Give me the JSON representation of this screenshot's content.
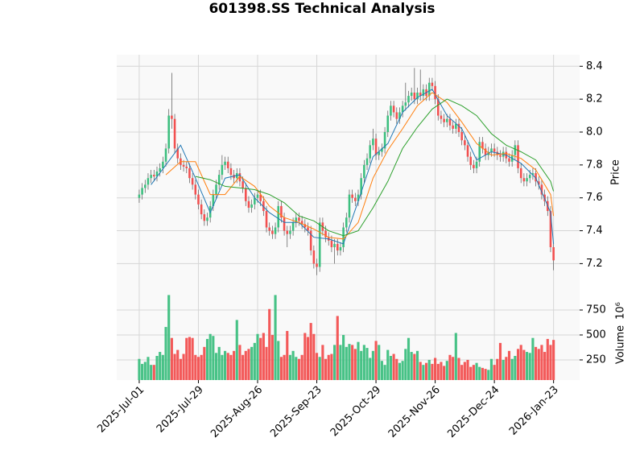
{
  "chart_data": {
    "type": "candlestick",
    "title": "601398.SS Technical Analysis",
    "ylabel": "Price",
    "volume_label": "Volume",
    "volume_offset": "10⁶",
    "up_color": "#3dbf7f",
    "down_color": "#f25050",
    "grid": true,
    "xlim": [
      -7.6,
      148.8
    ],
    "xticks": [
      {
        "value": 0,
        "label": "2025-Jul-01"
      },
      {
        "value": 20,
        "label": "2025-Jul-29"
      },
      {
        "value": 40,
        "label": "2025-Aug-26"
      },
      {
        "value": 60,
        "label": "2025-Sep-23"
      },
      {
        "value": 80,
        "label": "2025-Oct-29"
      },
      {
        "value": 100,
        "label": "2025-Nov-26"
      },
      {
        "value": 120,
        "label": "2025-Dec-24"
      },
      {
        "value": 140,
        "label": "2026-Jan-23"
      }
    ],
    "ylim": [
      7.06,
      8.47
    ],
    "yticks": [
      7.2,
      7.4,
      7.6,
      7.8,
      {
        "value": 8,
        "label": "8.0"
      },
      8.2,
      8.4
    ],
    "volume_ylim": [
      48,
      984
    ],
    "volume_yticks": [
      250,
      500,
      750
    ],
    "open": [
      7.6,
      7.62,
      7.66,
      7.68,
      7.72,
      7.74,
      7.73,
      7.76,
      7.78,
      7.82,
      7.9,
      8.1,
      8.08,
      7.9,
      7.84,
      7.8,
      7.79,
      7.78,
      7.72,
      7.68,
      7.62,
      7.56,
      7.5,
      7.46,
      7.48,
      7.55,
      7.62,
      7.68,
      7.74,
      7.8,
      7.82,
      7.78,
      7.74,
      7.72,
      7.75,
      7.7,
      7.66,
      7.58,
      7.54,
      7.56,
      7.6,
      7.62,
      7.58,
      7.52,
      7.42,
      7.4,
      7.38,
      7.42,
      7.55,
      7.48,
      7.4,
      7.38,
      7.4,
      7.45,
      7.48,
      7.46,
      7.44,
      7.42,
      7.4,
      7.28,
      7.2,
      7.18,
      7.45,
      7.4,
      7.36,
      7.34,
      7.3,
      7.32,
      7.28,
      7.3,
      7.42,
      7.48,
      7.62,
      7.6,
      7.58,
      7.62,
      7.72,
      7.8,
      7.84,
      7.92,
      7.96,
      7.86,
      7.88,
      7.9,
      8.0,
      8.1,
      8.16,
      8.12,
      8.08,
      8.12,
      8.16,
      8.18,
      8.22,
      8.24,
      8.2,
      8.24,
      8.22,
      8.26,
      8.22,
      8.3,
      8.28,
      8.2,
      8.1,
      8.08,
      8.06,
      8.08,
      8.04,
      8.02,
      8.05,
      8.0,
      7.95,
      7.92,
      7.85,
      7.8,
      7.78,
      7.82,
      7.94,
      7.9,
      7.86,
      7.88,
      7.9,
      7.88,
      7.86,
      7.85,
      7.88,
      7.84,
      7.82,
      7.86,
      7.92,
      7.78,
      7.72,
      7.7,
      7.72,
      7.74,
      7.75,
      7.7,
      7.68,
      7.62,
      7.58,
      7.52,
      7.3
    ],
    "high": [
      7.65,
      7.69,
      7.71,
      7.75,
      7.77,
      7.77,
      7.79,
      7.81,
      7.85,
      7.93,
      8.14,
      8.36,
      8.11,
      7.93,
      7.87,
      7.83,
      7.82,
      7.81,
      7.75,
      7.71,
      7.65,
      7.59,
      7.53,
      7.51,
      7.58,
      7.65,
      7.71,
      7.77,
      7.86,
      7.85,
      7.85,
      7.81,
      7.77,
      7.78,
      7.78,
      7.73,
      7.69,
      7.61,
      7.59,
      7.63,
      7.65,
      7.65,
      7.61,
      7.55,
      7.45,
      7.43,
      7.45,
      7.58,
      7.58,
      7.51,
      7.43,
      7.43,
      7.48,
      7.51,
      7.51,
      7.49,
      7.47,
      7.45,
      7.43,
      7.31,
      7.23,
      7.48,
      7.48,
      7.43,
      7.39,
      7.37,
      7.35,
      7.35,
      7.33,
      7.45,
      7.51,
      7.65,
      7.65,
      7.63,
      7.65,
      7.75,
      7.83,
      7.87,
      7.95,
      8.02,
      7.99,
      7.91,
      7.93,
      8.03,
      8.13,
      8.19,
      8.19,
      8.15,
      8.15,
      8.19,
      8.3,
      8.25,
      8.27,
      8.39,
      8.27,
      8.38,
      8.29,
      8.29,
      8.33,
      8.33,
      8.31,
      8.23,
      8.13,
      8.11,
      8.11,
      8.11,
      8.07,
      8.08,
      8.08,
      8.03,
      7.98,
      7.95,
      7.88,
      7.83,
      7.85,
      7.97,
      7.97,
      7.93,
      7.91,
      7.93,
      7.93,
      7.91,
      7.89,
      7.91,
      7.91,
      7.87,
      7.89,
      7.95,
      7.95,
      7.81,
      7.75,
      7.75,
      7.77,
      7.78,
      7.78,
      7.73,
      7.71,
      7.65,
      7.61,
      7.55,
      7.33
    ],
    "low": [
      7.57,
      7.59,
      7.63,
      7.65,
      7.69,
      7.7,
      7.7,
      7.73,
      7.75,
      7.79,
      7.87,
      8.02,
      7.87,
      7.81,
      7.77,
      7.76,
      7.75,
      7.69,
      7.65,
      7.59,
      7.53,
      7.47,
      7.43,
      7.43,
      7.45,
      7.52,
      7.59,
      7.65,
      7.71,
      7.77,
      7.75,
      7.71,
      7.69,
      7.69,
      7.67,
      7.63,
      7.55,
      7.51,
      7.51,
      7.53,
      7.57,
      7.55,
      7.49,
      7.39,
      7.37,
      7.35,
      7.35,
      7.39,
      7.45,
      7.37,
      7.3,
      7.35,
      7.37,
      7.42,
      7.43,
      7.41,
      7.39,
      7.37,
      7.25,
      7.17,
      7.13,
      7.15,
      7.37,
      7.33,
      7.31,
      7.27,
      7.2,
      7.25,
      7.25,
      7.27,
      7.39,
      7.45,
      7.57,
      7.55,
      7.55,
      7.59,
      7.69,
      7.77,
      7.81,
      7.89,
      7.83,
      7.83,
      7.85,
      7.87,
      7.97,
      8.07,
      8.09,
      8.05,
      8.05,
      8.09,
      8.13,
      8.15,
      8.19,
      8.17,
      8.17,
      8.19,
      8.19,
      8.19,
      8.19,
      8.25,
      8.17,
      8.07,
      8.05,
      8.03,
      8.03,
      8.01,
      7.99,
      7.99,
      7.97,
      7.92,
      7.89,
      7.82,
      7.77,
      7.75,
      7.75,
      7.79,
      7.87,
      7.83,
      7.83,
      7.85,
      7.85,
      7.83,
      7.82,
      7.82,
      7.81,
      7.79,
      7.79,
      7.83,
      7.75,
      7.69,
      7.67,
      7.67,
      7.69,
      7.71,
      7.67,
      7.65,
      7.59,
      7.55,
      7.49,
      7.27,
      7.16
    ],
    "close": [
      7.62,
      7.66,
      7.68,
      7.72,
      7.74,
      7.73,
      7.76,
      7.78,
      7.82,
      7.9,
      8.1,
      8.08,
      7.9,
      7.84,
      7.8,
      7.79,
      7.78,
      7.72,
      7.68,
      7.62,
      7.56,
      7.5,
      7.46,
      7.48,
      7.55,
      7.62,
      7.68,
      7.74,
      7.8,
      7.82,
      7.78,
      7.74,
      7.72,
      7.75,
      7.7,
      7.66,
      7.58,
      7.54,
      7.56,
      7.6,
      7.62,
      7.58,
      7.52,
      7.42,
      7.4,
      7.38,
      7.42,
      7.55,
      7.48,
      7.4,
      7.38,
      7.4,
      7.45,
      7.48,
      7.46,
      7.44,
      7.42,
      7.4,
      7.28,
      7.2,
      7.18,
      7.45,
      7.4,
      7.36,
      7.34,
      7.3,
      7.32,
      7.28,
      7.3,
      7.42,
      7.48,
      7.62,
      7.6,
      7.58,
      7.62,
      7.72,
      7.8,
      7.84,
      7.92,
      7.96,
      7.86,
      7.88,
      7.9,
      8.0,
      8.1,
      8.16,
      8.12,
      8.08,
      8.12,
      8.16,
      8.18,
      8.22,
      8.24,
      8.2,
      8.24,
      8.22,
      8.26,
      8.22,
      8.3,
      8.28,
      8.2,
      8.1,
      8.08,
      8.06,
      8.08,
      8.04,
      8.02,
      8.05,
      8.0,
      7.95,
      7.92,
      7.85,
      7.8,
      7.78,
      7.82,
      7.94,
      7.9,
      7.86,
      7.88,
      7.9,
      7.88,
      7.86,
      7.85,
      7.88,
      7.84,
      7.82,
      7.86,
      7.92,
      7.78,
      7.72,
      7.7,
      7.72,
      7.74,
      7.75,
      7.7,
      7.68,
      7.62,
      7.58,
      7.52,
      7.3,
      7.22
    ],
    "volume": [
      260,
      210,
      230,
      280,
      200,
      200,
      290,
      330,
      300,
      580,
      900,
      470,
      310,
      350,
      260,
      310,
      470,
      480,
      470,
      300,
      280,
      300,
      380,
      460,
      510,
      490,
      320,
      380,
      300,
      340,
      320,
      300,
      340,
      650,
      400,
      300,
      340,
      360,
      380,
      420,
      510,
      470,
      520,
      380,
      760,
      500,
      900,
      440,
      280,
      300,
      540,
      300,
      340,
      280,
      260,
      300,
      520,
      480,
      620,
      510,
      320,
      280,
      400,
      260,
      300,
      310,
      400,
      690,
      400,
      500,
      380,
      410,
      400,
      360,
      430,
      340,
      400,
      370,
      270,
      340,
      440,
      400,
      240,
      200,
      350,
      290,
      310,
      260,
      220,
      240,
      360,
      470,
      330,
      310,
      340,
      230,
      200,
      220,
      250,
      210,
      270,
      210,
      230,
      190,
      240,
      300,
      280,
      520,
      270,
      200,
      230,
      250,
      180,
      200,
      220,
      180,
      170,
      160,
      150,
      260,
      200,
      260,
      420,
      250,
      280,
      340,
      260,
      290,
      360,
      400,
      350,
      330,
      320,
      470,
      380,
      360,
      400,
      330,
      460,
      400,
      450
    ],
    "moving_averages": [
      {
        "color": "#1f77b4",
        "x": [
          4,
          9,
          14,
          19,
          24,
          29,
          34,
          39,
          44,
          49,
          54,
          59,
          64,
          69,
          74,
          79,
          84,
          89,
          94,
          99,
          104,
          109,
          114,
          119,
          124,
          129,
          134,
          139,
          140
        ],
        "values": [
          7.68,
          7.8,
          7.92,
          7.72,
          7.51,
          7.72,
          7.74,
          7.6,
          7.51,
          7.45,
          7.45,
          7.36,
          7.35,
          7.32,
          7.58,
          7.85,
          7.93,
          8.12,
          8.21,
          8.26,
          8.1,
          8.02,
          7.83,
          7.88,
          7.86,
          7.81,
          7.72,
          7.51,
          7.32
        ]
      },
      {
        "color": "#ff7f0e",
        "x": [
          9,
          14,
          19,
          24,
          29,
          34,
          39,
          44,
          49,
          54,
          59,
          64,
          69,
          74,
          79,
          84,
          89,
          94,
          99,
          104,
          109,
          114,
          119,
          124,
          129,
          134,
          139,
          140
        ],
        "values": [
          7.74,
          7.82,
          7.82,
          7.62,
          7.62,
          7.73,
          7.67,
          7.55,
          7.48,
          7.45,
          7.41,
          7.36,
          7.35,
          7.45,
          7.72,
          7.89,
          8.02,
          8.16,
          8.24,
          8.18,
          8.06,
          7.93,
          7.86,
          7.87,
          7.84,
          7.77,
          7.62,
          7.49
        ]
      },
      {
        "color": "#2ca02c",
        "x": [
          19,
          24,
          29,
          34,
          39,
          44,
          49,
          54,
          59,
          64,
          69,
          74,
          79,
          84,
          89,
          94,
          99,
          104,
          109,
          114,
          119,
          124,
          129,
          134,
          139,
          140
        ],
        "values": [
          7.73,
          7.71,
          7.67,
          7.66,
          7.65,
          7.62,
          7.57,
          7.49,
          7.46,
          7.4,
          7.37,
          7.4,
          7.54,
          7.7,
          7.9,
          8.03,
          8.14,
          8.2,
          8.16,
          8.1,
          7.99,
          7.92,
          7.88,
          7.83,
          7.7,
          7.64
        ]
      }
    ]
  }
}
